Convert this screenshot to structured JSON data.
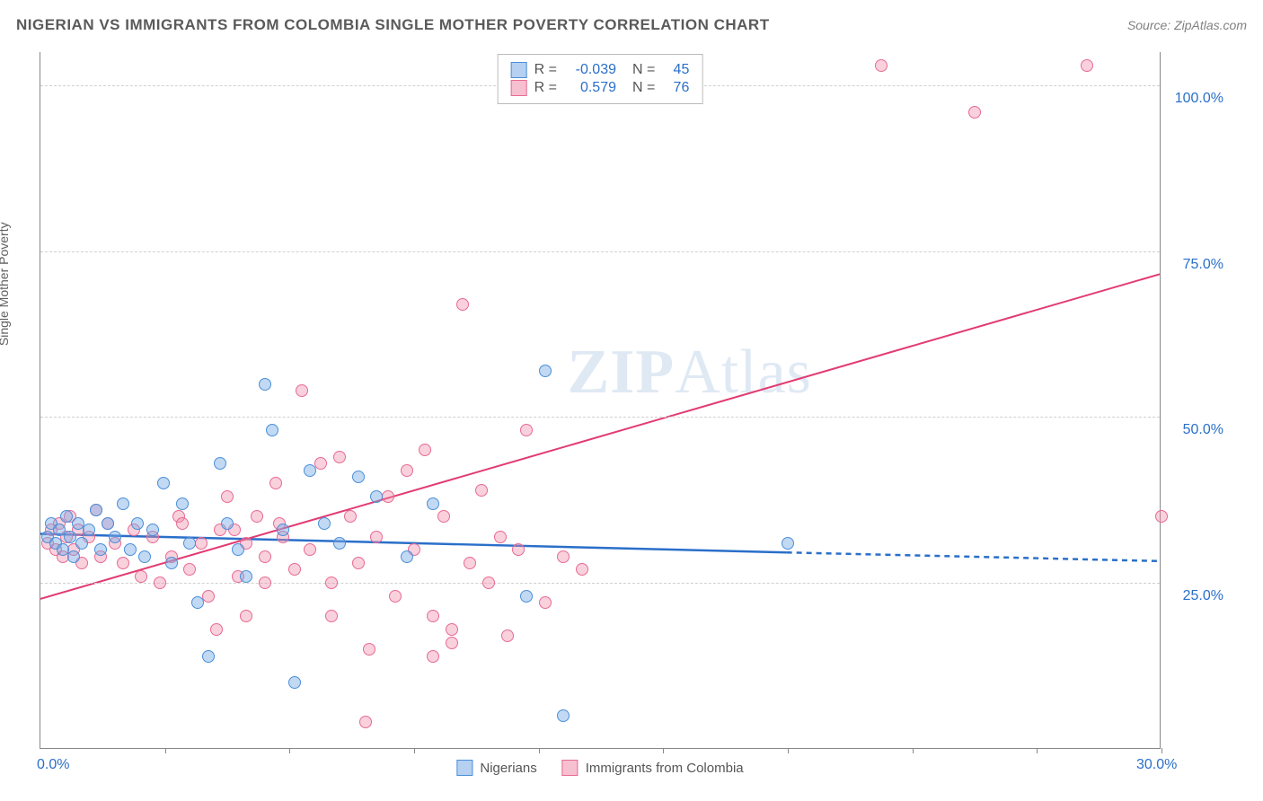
{
  "header": {
    "title": "NIGERIAN VS IMMIGRANTS FROM COLOMBIA SINGLE MOTHER POVERTY CORRELATION CHART",
    "source": "Source: ZipAtlas.com"
  },
  "axes": {
    "ylabel": "Single Mother Poverty",
    "xlim": [
      0,
      30
    ],
    "ylim": [
      0,
      105
    ],
    "x_tick_labels": {
      "0": "0.0%",
      "30": "30.0%"
    },
    "y_ticks": [
      25,
      50,
      75,
      100
    ],
    "y_tick_labels": {
      "25": "25.0%",
      "50": "50.0%",
      "75": "75.0%",
      "100": "100.0%"
    },
    "x_minor_ticks": [
      3.33,
      6.66,
      10,
      13.33,
      16.66,
      20,
      23.33,
      26.66,
      30
    ],
    "grid_color": "#d0d0d0",
    "axis_color": "#888888",
    "tick_label_color": "#2a6fc9"
  },
  "watermark": {
    "text_bold": "ZIP",
    "text_rest": "Atlas"
  },
  "legend": {
    "series": [
      {
        "label": "Nigerians",
        "swatch": "a"
      },
      {
        "label": "Immigrants from Colombia",
        "swatch": "b"
      }
    ]
  },
  "stats": {
    "rows": [
      {
        "swatch": "a",
        "r_label": "R =",
        "r": "-0.039",
        "n_label": "N =",
        "n": "45"
      },
      {
        "swatch": "b",
        "r_label": "R =",
        "r": "0.579",
        "n_label": "N =",
        "n": "76"
      }
    ]
  },
  "series_a": {
    "name": "Nigerians",
    "fill_color": "rgba(120,170,230,0.45)",
    "stroke_color": "#4a8fd8",
    "marker_radius": 7,
    "regression": {
      "solid": {
        "x1": 0,
        "y1": 32.3,
        "x2": 20,
        "y2": 29.5
      },
      "dashed": {
        "x1": 20,
        "y1": 29.5,
        "x2": 30,
        "y2": 28.2
      },
      "color": "#2a6fc9",
      "width": 2.5
    },
    "points": [
      [
        0.2,
        32
      ],
      [
        0.3,
        34
      ],
      [
        0.4,
        31
      ],
      [
        0.5,
        33
      ],
      [
        0.6,
        30
      ],
      [
        0.7,
        35
      ],
      [
        0.8,
        32
      ],
      [
        0.9,
        29
      ],
      [
        1.0,
        34
      ],
      [
        1.1,
        31
      ],
      [
        1.3,
        33
      ],
      [
        1.5,
        36
      ],
      [
        1.6,
        30
      ],
      [
        1.8,
        34
      ],
      [
        2.0,
        32
      ],
      [
        2.2,
        37
      ],
      [
        2.4,
        30
      ],
      [
        2.6,
        34
      ],
      [
        2.8,
        29
      ],
      [
        3.0,
        33
      ],
      [
        3.3,
        40
      ],
      [
        3.5,
        28
      ],
      [
        3.8,
        37
      ],
      [
        4.0,
        31
      ],
      [
        4.2,
        22
      ],
      [
        4.5,
        14
      ],
      [
        4.8,
        43
      ],
      [
        5.0,
        34
      ],
      [
        5.3,
        30
      ],
      [
        5.5,
        26
      ],
      [
        6.0,
        55
      ],
      [
        6.2,
        48
      ],
      [
        6.5,
        33
      ],
      [
        6.8,
        10
      ],
      [
        7.2,
        42
      ],
      [
        7.6,
        34
      ],
      [
        8.0,
        31
      ],
      [
        8.5,
        41
      ],
      [
        9.0,
        38
      ],
      [
        9.8,
        29
      ],
      [
        10.5,
        37
      ],
      [
        13.0,
        23
      ],
      [
        13.5,
        57
      ],
      [
        14.0,
        5
      ],
      [
        20.0,
        31
      ]
    ]
  },
  "series_b": {
    "name": "Immigrants from Colombia",
    "fill_color": "rgba(240,140,170,0.40)",
    "stroke_color": "#e76a94",
    "marker_radius": 7,
    "regression": {
      "solid": {
        "x1": 0,
        "y1": 22.5,
        "x2": 30,
        "y2": 71.5
      },
      "color": "#e23b72",
      "width": 2
    },
    "points": [
      [
        0.2,
        31
      ],
      [
        0.3,
        33
      ],
      [
        0.4,
        30
      ],
      [
        0.5,
        34
      ],
      [
        0.6,
        29
      ],
      [
        0.7,
        32
      ],
      [
        0.8,
        35
      ],
      [
        0.9,
        30
      ],
      [
        1.0,
        33
      ],
      [
        1.1,
        28
      ],
      [
        1.3,
        32
      ],
      [
        1.5,
        36
      ],
      [
        1.6,
        29
      ],
      [
        1.8,
        34
      ],
      [
        2.0,
        31
      ],
      [
        2.2,
        28
      ],
      [
        2.5,
        33
      ],
      [
        2.7,
        26
      ],
      [
        3.0,
        32
      ],
      [
        3.2,
        25
      ],
      [
        3.5,
        29
      ],
      [
        3.7,
        35
      ],
      [
        4.0,
        27
      ],
      [
        4.3,
        31
      ],
      [
        4.5,
        23
      ],
      [
        4.8,
        33
      ],
      [
        5.0,
        38
      ],
      [
        5.3,
        26
      ],
      [
        5.5,
        31
      ],
      [
        5.8,
        35
      ],
      [
        6.0,
        29
      ],
      [
        6.3,
        40
      ],
      [
        6.5,
        32
      ],
      [
        6.8,
        27
      ],
      [
        7.0,
        54
      ],
      [
        7.2,
        30
      ],
      [
        7.5,
        43
      ],
      [
        7.8,
        25
      ],
      [
        8.0,
        44
      ],
      [
        8.3,
        35
      ],
      [
        8.5,
        28
      ],
      [
        8.8,
        15
      ],
      [
        9.0,
        32
      ],
      [
        9.3,
        38
      ],
      [
        9.5,
        23
      ],
      [
        9.8,
        42
      ],
      [
        10.0,
        30
      ],
      [
        10.3,
        45
      ],
      [
        10.5,
        20
      ],
      [
        10.8,
        35
      ],
      [
        11.0,
        18
      ],
      [
        11.3,
        67
      ],
      [
        11.5,
        28
      ],
      [
        11.8,
        39
      ],
      [
        12.0,
        25
      ],
      [
        12.3,
        32
      ],
      [
        12.5,
        17
      ],
      [
        12.8,
        30
      ],
      [
        13.0,
        48
      ],
      [
        13.5,
        22
      ],
      [
        14.0,
        29
      ],
      [
        14.5,
        27
      ],
      [
        8.7,
        4
      ],
      [
        11.0,
        16
      ],
      [
        10.5,
        14
      ],
      [
        4.7,
        18
      ],
      [
        5.5,
        20
      ],
      [
        6.0,
        25
      ],
      [
        7.8,
        20
      ],
      [
        22.5,
        103
      ],
      [
        25.0,
        96
      ],
      [
        28.0,
        103
      ],
      [
        30.0,
        35
      ],
      [
        5.2,
        33
      ],
      [
        6.4,
        34
      ],
      [
        3.8,
        34
      ]
    ]
  }
}
